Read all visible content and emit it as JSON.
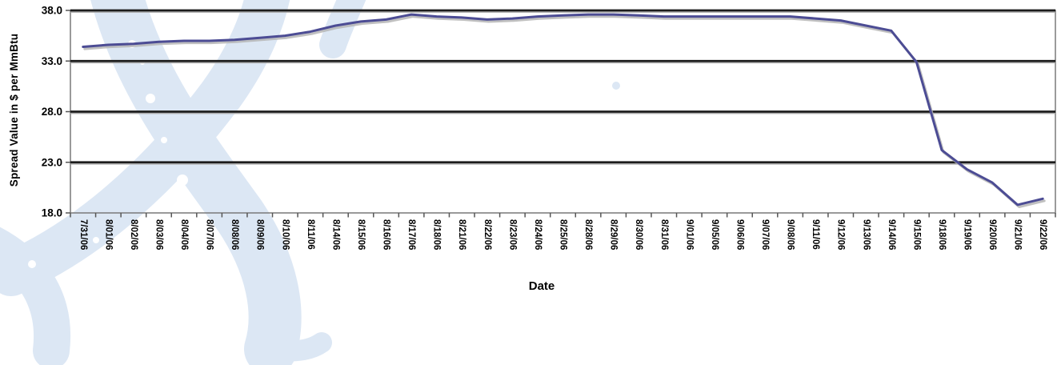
{
  "chart_data": {
    "type": "line",
    "title": "",
    "xlabel": "Date",
    "ylabel": "Spread Value in $ per MmBtu",
    "categories": [
      "7/31/06",
      "8/01/06",
      "8/02/06",
      "8/03/06",
      "8/04/06",
      "8/07/06",
      "8/08/06",
      "8/09/06",
      "8/10/06",
      "8/11/06",
      "8/14/06",
      "8/15/06",
      "8/16/06",
      "8/17/06",
      "8/18/06",
      "8/21/06",
      "8/22/06",
      "8/23/06",
      "8/24/06",
      "8/25/06",
      "8/28/06",
      "8/29/06",
      "8/30/06",
      "8/31/06",
      "9/01/06",
      "9/05/06",
      "9/06/06",
      "9/07/06",
      "9/08/06",
      "9/11/06",
      "9/12/06",
      "9/13/06",
      "9/14/06",
      "9/15/06",
      "9/18/06",
      "9/19/06",
      "9/20/06",
      "9/21/06",
      "9/22/06"
    ],
    "series": [
      {
        "name": "spread-value",
        "values": [
          34.4,
          34.6,
          34.7,
          34.9,
          35.0,
          35.0,
          35.1,
          35.3,
          35.5,
          35.9,
          36.5,
          36.9,
          37.1,
          37.6,
          37.4,
          37.3,
          37.1,
          37.2,
          37.4,
          37.5,
          37.6,
          37.6,
          37.5,
          37.4,
          37.4,
          37.4,
          37.4,
          37.4,
          37.4,
          37.2,
          37.0,
          36.5,
          36.0,
          32.9,
          24.2,
          22.3,
          21.0,
          18.8,
          19.4
        ]
      }
    ],
    "ylim": [
      18.0,
      38.0
    ],
    "yticks": [
      38.0,
      33.0,
      28.0,
      23.0,
      18.0
    ],
    "ytick_labels": [
      "38.0",
      "33.0",
      "28.0",
      "23.0",
      "18.0"
    ],
    "grid": "horizontal-only",
    "legend_position": "none",
    "colors": {
      "line": "#4c4c94",
      "line_shadow": "#b5b5b5",
      "gridline": "#1c1c1c",
      "gridline_shadow": "#a8a8a8",
      "axis_border": "#808080",
      "tick": "#555555",
      "label_text": "#000000",
      "watermark": "#dce7f4",
      "background": "#ffffff"
    }
  }
}
